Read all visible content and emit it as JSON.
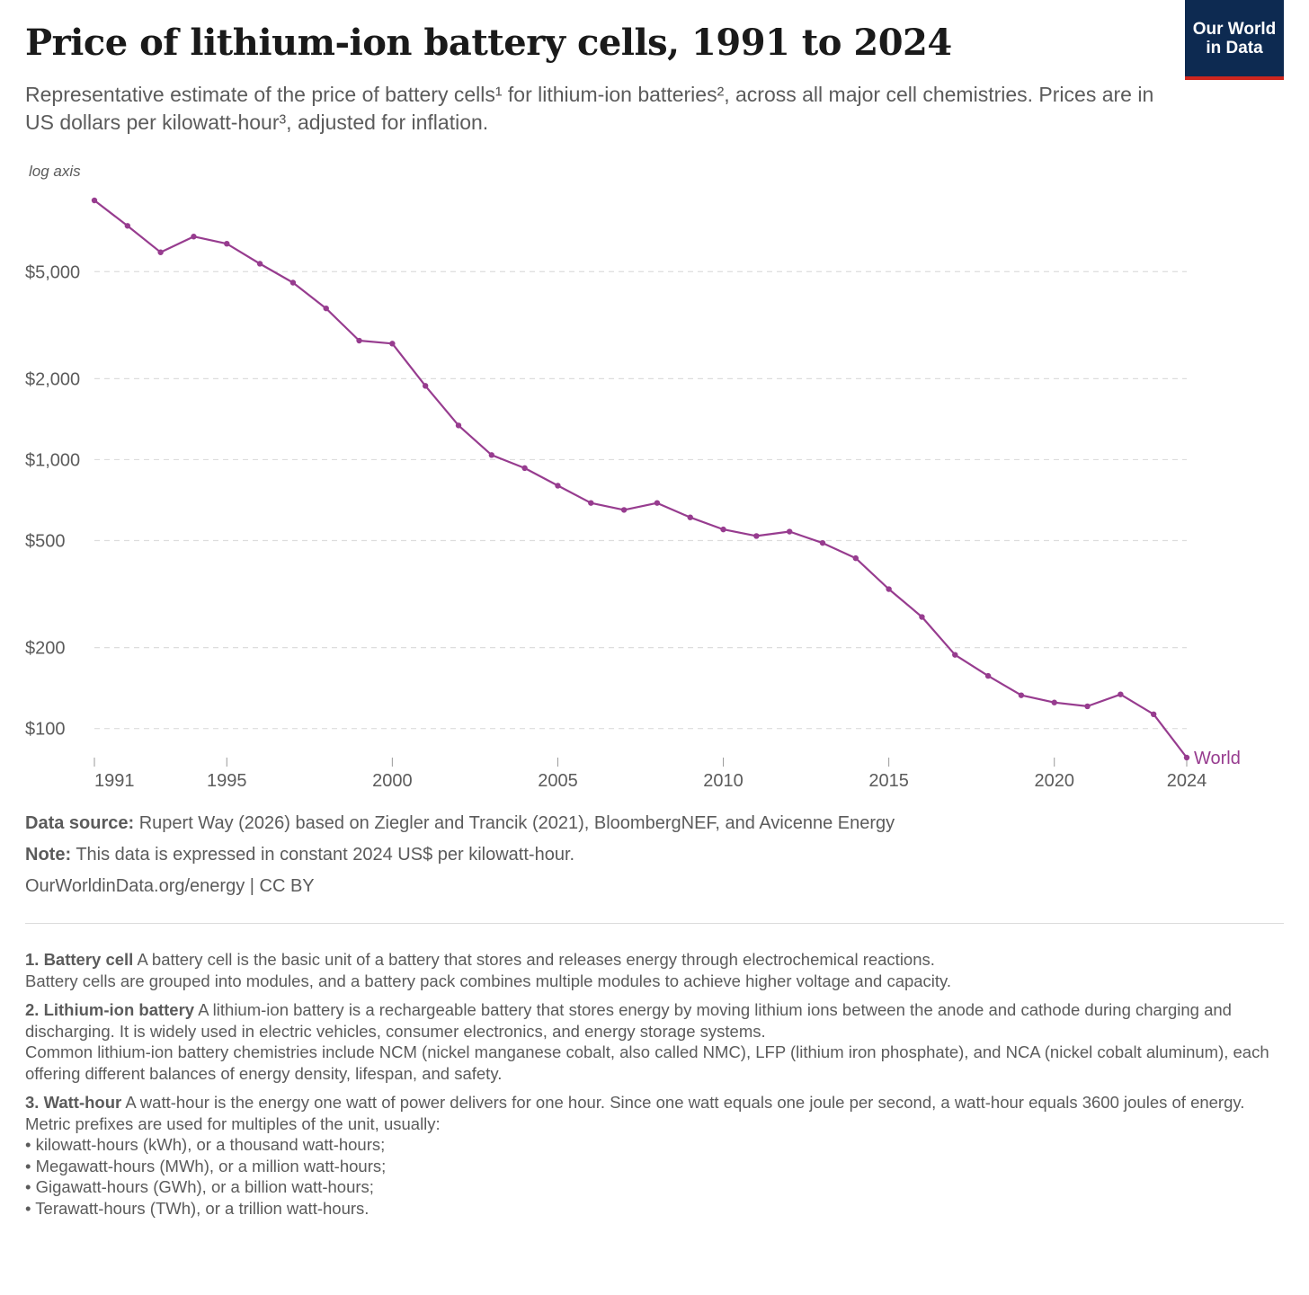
{
  "header": {
    "title": "Price of lithium-ion battery cells, 1991 to 2024",
    "subtitle": "Representative estimate of the price of battery cells¹ for lithium-ion batteries², across all major cell chemistries. Prices are in US dollars per kilowatt-hour³, adjusted for inflation.",
    "logo_line1": "Our World",
    "logo_line2": "in Data"
  },
  "colors": {
    "series": "#973c8f",
    "logo_bg": "#0d2a51",
    "logo_accent": "#ce261e",
    "grid": "#dddddd"
  },
  "chart_data": {
    "type": "line",
    "scale_y": "log",
    "axis_note": "log axis",
    "grid": true,
    "x": [
      1991,
      1992,
      1993,
      1994,
      1995,
      1996,
      1997,
      1998,
      1999,
      2000,
      2001,
      2002,
      2003,
      2004,
      2005,
      2006,
      2007,
      2008,
      2009,
      2010,
      2011,
      2012,
      2013,
      2014,
      2015,
      2016,
      2017,
      2018,
      2019,
      2020,
      2021,
      2022,
      2023,
      2024
    ],
    "series": [
      {
        "name": "World",
        "values": [
          9200,
          7400,
          5900,
          6750,
          6350,
          5350,
          4550,
          3650,
          2770,
          2700,
          1880,
          1340,
          1040,
          930,
          800,
          690,
          650,
          690,
          610,
          550,
          520,
          540,
          490,
          430,
          330,
          260,
          188,
          157,
          133,
          125,
          121,
          134,
          113,
          78
        ]
      }
    ],
    "ylim": [
      78,
      9200
    ],
    "xlim": [
      1991,
      2024
    ],
    "y_ticks": [
      {
        "value": 100,
        "label": "$100"
      },
      {
        "value": 200,
        "label": "$200"
      },
      {
        "value": 500,
        "label": "$500"
      },
      {
        "value": 1000,
        "label": "$1,000"
      },
      {
        "value": 2000,
        "label": "$2,000"
      },
      {
        "value": 5000,
        "label": "$5,000"
      }
    ],
    "x_ticks": [
      {
        "value": 1991,
        "label": "1991"
      },
      {
        "value": 1995,
        "label": "1995"
      },
      {
        "value": 2000,
        "label": "2000"
      },
      {
        "value": 2005,
        "label": "2005"
      },
      {
        "value": 2010,
        "label": "2010"
      },
      {
        "value": 2015,
        "label": "2015"
      },
      {
        "value": 2020,
        "label": "2020"
      },
      {
        "value": 2024,
        "label": "2024"
      }
    ]
  },
  "sources": {
    "data_source_label": "Data source:",
    "data_source_text": "Rupert Way (2026) based on Ziegler and Trancik (2021), BloombergNEF, and Avicenne Energy",
    "note_label": "Note:",
    "note_text": "This data is expressed in constant 2024 US$ per kilowatt-hour.",
    "url_text": "OurWorldinData.org/energy | CC BY"
  },
  "footnotes": [
    {
      "label": "1. Battery cell",
      "lines": [
        "A battery cell is the basic unit of a battery that stores and releases energy through electrochemical reactions.",
        "Battery cells are grouped into modules, and a battery pack combines multiple modules to achieve higher voltage and capacity."
      ]
    },
    {
      "label": "2. Lithium-ion battery",
      "lines": [
        "A lithium-ion battery is a rechargeable battery that stores energy by moving lithium ions between the anode and cathode during charging and discharging. It is widely used in electric vehicles, consumer electronics, and energy storage systems.",
        "Common lithium-ion battery chemistries include NCM (nickel manganese cobalt, also called NMC), LFP (lithium iron phosphate), and NCA (nickel cobalt aluminum), each offering different balances of energy density, lifespan, and safety."
      ]
    },
    {
      "label": "3. Watt-hour",
      "lines": [
        "A watt-hour is the energy one watt of power delivers for one hour. Since one watt equals one joule per second, a watt-hour equals 3600 joules of energy.",
        "Metric prefixes are used for multiples of the unit, usually:",
        "• kilowatt-hours (kWh), or a thousand watt-hours;",
        "• Megawatt-hours (MWh), or a million watt-hours;",
        "• Gigawatt-hours (GWh), or a billion watt-hours;",
        "• Terawatt-hours (TWh), or a trillion watt-hours."
      ]
    }
  ]
}
